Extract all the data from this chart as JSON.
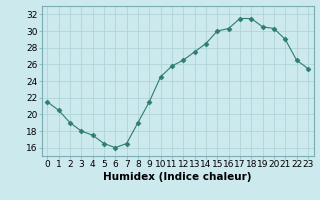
{
  "x": [
    0,
    1,
    2,
    3,
    4,
    5,
    6,
    7,
    8,
    9,
    10,
    11,
    12,
    13,
    14,
    15,
    16,
    17,
    18,
    19,
    20,
    21,
    22,
    23
  ],
  "y": [
    21.5,
    20.5,
    19.0,
    18.0,
    17.5,
    16.5,
    16.0,
    16.5,
    19.0,
    21.5,
    24.5,
    25.8,
    26.5,
    27.5,
    28.5,
    30.0,
    30.3,
    31.5,
    31.5,
    30.5,
    30.3,
    29.0,
    26.5,
    25.5
  ],
  "line_color": "#2e7d6e",
  "marker": "D",
  "marker_size": 2.5,
  "bg_color": "#cce9ee",
  "grid_color": "#b0d4da",
  "xlabel": "Humidex (Indice chaleur)",
  "xlim": [
    -0.5,
    23.5
  ],
  "ylim": [
    15.0,
    33.0
  ],
  "yticks": [
    16,
    18,
    20,
    22,
    24,
    26,
    28,
    30,
    32
  ],
  "xticks": [
    0,
    1,
    2,
    3,
    4,
    5,
    6,
    7,
    8,
    9,
    10,
    11,
    12,
    13,
    14,
    15,
    16,
    17,
    18,
    19,
    20,
    21,
    22,
    23
  ],
  "tick_label_size": 6.5,
  "xlabel_fontsize": 7.5,
  "spine_color": "#7aacb4"
}
